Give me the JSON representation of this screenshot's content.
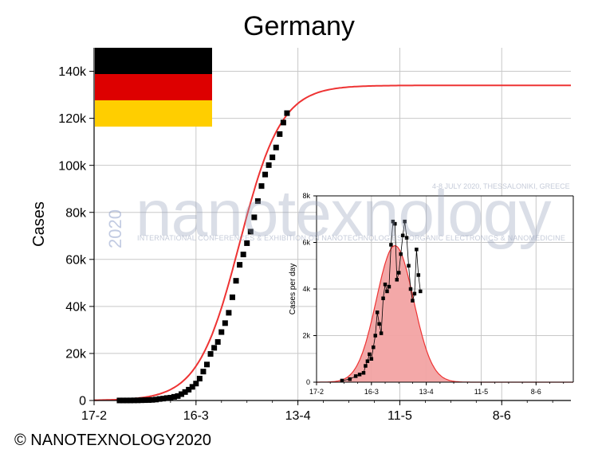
{
  "title": "Germany",
  "copyright": "© NANOTEXNOLOGY2020",
  "watermark": {
    "brand": "nanotexnology",
    "year": "2020",
    "subtitle": "INTERNATIONAL CONFERENCES & EXHIBITION ON NANOTECHNOLOGIES - ORGANIC ELECTRONICS & NANOMEDICINE",
    "dates": "4-8 JULY 2020, THESSALONIKI, GREECE"
  },
  "flag": {
    "colors": [
      "#000000",
      "#dd0000",
      "#ffce00"
    ]
  },
  "chart_data": [
    {
      "type": "scatter",
      "ylabel": "Cases",
      "xlabel": "",
      "x_tick_labels": [
        "17-2",
        "16-3",
        "13-4",
        "11-5",
        "8-6"
      ],
      "y_tick_labels": [
        "0",
        "20k",
        "40k",
        "60k",
        "80k",
        "100k",
        "120k",
        "140k"
      ],
      "xlim": [
        "2020-02-17",
        "2020-06-27"
      ],
      "ylim": [
        0,
        150000
      ],
      "grid": true,
      "series": [
        {
          "kind": "points",
          "color": "#000000",
          "x": [
            "2020-02-24",
            "2020-02-25",
            "2020-02-26",
            "2020-02-27",
            "2020-02-28",
            "2020-02-29",
            "2020-03-01",
            "2020-03-02",
            "2020-03-03",
            "2020-03-04",
            "2020-03-05",
            "2020-03-06",
            "2020-03-07",
            "2020-03-08",
            "2020-03-09",
            "2020-03-10",
            "2020-03-11",
            "2020-03-12",
            "2020-03-13",
            "2020-03-14",
            "2020-03-15",
            "2020-03-16",
            "2020-03-17",
            "2020-03-18",
            "2020-03-19",
            "2020-03-20",
            "2020-03-21",
            "2020-03-22",
            "2020-03-23",
            "2020-03-24",
            "2020-03-25",
            "2020-03-26",
            "2020-03-27",
            "2020-03-28",
            "2020-03-29",
            "2020-03-30",
            "2020-03-31",
            "2020-04-01",
            "2020-04-02",
            "2020-04-03",
            "2020-04-04",
            "2020-04-05",
            "2020-04-06",
            "2020-04-07",
            "2020-04-08",
            "2020-04-09",
            "2020-04-10"
          ],
          "y": [
            16,
            18,
            21,
            26,
            53,
            66,
            117,
            150,
            188,
            262,
            400,
            640,
            800,
            1040,
            1200,
            1560,
            1900,
            2700,
            3600,
            4600,
            5800,
            7200,
            9300,
            12300,
            15300,
            19800,
            22400,
            24900,
            29100,
            32900,
            37300,
            43900,
            50900,
            57700,
            62100,
            66900,
            71800,
            77900,
            84800,
            91200,
            96100,
            100100,
            103400,
            107600,
            113300,
            118200,
            122200
          ]
        },
        {
          "kind": "logistic-fit",
          "color": "#ee3333",
          "K": 134000,
          "r": 0.175,
          "t0": "2020-03-28"
        }
      ]
    },
    {
      "type": "area",
      "ylabel": "Cases per day",
      "xlabel": "",
      "x_tick_labels": [
        "17-2",
        "16-3",
        "13-4",
        "11-5",
        "8-6"
      ],
      "y_tick_labels": [
        "0",
        "2k",
        "4k",
        "6k",
        "8k"
      ],
      "xlim": [
        "2020-02-17",
        "2020-06-27"
      ],
      "ylim": [
        0,
        8000
      ],
      "grid": true,
      "series": [
        {
          "kind": "points-line",
          "color": "#000000",
          "x": [
            "2020-03-01",
            "2020-03-05",
            "2020-03-08",
            "2020-03-10",
            "2020-03-12",
            "2020-03-13",
            "2020-03-14",
            "2020-03-15",
            "2020-03-16",
            "2020-03-17",
            "2020-03-18",
            "2020-03-19",
            "2020-03-20",
            "2020-03-21",
            "2020-03-22",
            "2020-03-23",
            "2020-03-24",
            "2020-03-25",
            "2020-03-26",
            "2020-03-27",
            "2020-03-28",
            "2020-03-29",
            "2020-03-30",
            "2020-03-31",
            "2020-04-01",
            "2020-04-02",
            "2020-04-03",
            "2020-04-04",
            "2020-04-05",
            "2020-04-06",
            "2020-04-07",
            "2020-04-08",
            "2020-04-09",
            "2020-04-10"
          ],
          "y": [
            70,
            130,
            260,
            330,
            400,
            700,
            900,
            1200,
            1000,
            1500,
            2000,
            3000,
            2500,
            2100,
            3600,
            4200,
            3900,
            4100,
            5900,
            6900,
            6800,
            4400,
            4700,
            5500,
            6300,
            6900,
            6200,
            5000,
            4000,
            3500,
            3800,
            5700,
            4600,
            3900
          ]
        },
        {
          "kind": "fit-area",
          "color": "#ee3333",
          "fill": "#f2a3a3",
          "peak": 5860,
          "sigma": 1.35,
          "t0": "2020-03-28"
        }
      ]
    }
  ]
}
